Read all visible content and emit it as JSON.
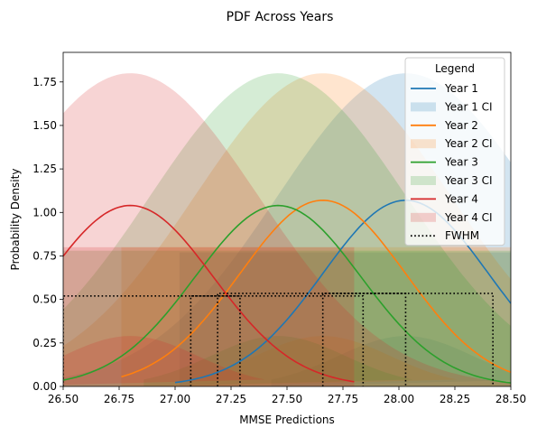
{
  "chart_data": {
    "type": "line",
    "title": "PDF Across Years",
    "xlabel": "MMSE Predictions",
    "ylabel": "Probability Density",
    "xlim": [
      26.5,
      28.5
    ],
    "ylim": [
      0,
      1.92
    ],
    "x_ticks": [
      "26.50",
      "26.75",
      "27.00",
      "27.25",
      "27.50",
      "27.75",
      "28.00",
      "28.25",
      "28.50"
    ],
    "y_ticks": [
      "0.00",
      "0.25",
      "0.50",
      "0.75",
      "1.00",
      "1.25",
      "1.50",
      "1.75"
    ],
    "grid": false,
    "legend_position": "top-right",
    "legend_title": "Legend",
    "series": [
      {
        "name": "Year 1",
        "color": "#1f77b4",
        "mean": 28.03,
        "sd": 0.37,
        "peak": 1.07,
        "x_range": [
          27.0,
          28.5
        ],
        "ci": {
          "name": "Year 1 CI",
          "peak": 1.8,
          "x_range": [
            27.02,
            28.5
          ],
          "rect_top": 0.77,
          "lower_peak": 0.29
        },
        "fwhm": {
          "left": 27.66,
          "right": 28.42,
          "height": 0.535
        }
      },
      {
        "name": "Year 2",
        "color": "#ff7f0e",
        "mean": 27.66,
        "sd": 0.37,
        "peak": 1.07,
        "x_range": [
          26.76,
          28.5
        ],
        "ci": {
          "name": "Year 2 CI",
          "peak": 1.8,
          "x_range": [
            26.76,
            28.5
          ],
          "rect_top": 0.8,
          "lower_peak": 0.29
        },
        "fwhm": {
          "left": 27.19,
          "right": 28.03,
          "height": 0.535
        }
      },
      {
        "name": "Year 3",
        "color": "#2ca02c",
        "mean": 27.46,
        "sd": 0.37,
        "peak": 1.04,
        "x_range": [
          26.5,
          28.5
        ],
        "ci": {
          "name": "Year 3 CI",
          "peak": 1.8,
          "x_range": [
            26.5,
            28.5
          ],
          "rect_top": 0.78,
          "lower_peak": 0.29
        },
        "fwhm": {
          "left": 27.07,
          "right": 27.84,
          "height": 0.52
        }
      },
      {
        "name": "Year 4",
        "color": "#d62728",
        "mean": 26.8,
        "sd": 0.37,
        "peak": 1.04,
        "x_range": [
          26.5,
          27.8
        ],
        "ci": {
          "name": "Year 4 CI",
          "peak": 1.8,
          "x_range": [
            26.5,
            27.8
          ],
          "rect_top": 0.8,
          "lower_peak": 0.29
        },
        "fwhm": {
          "left": 26.5,
          "right": 27.29,
          "height": 0.52
        }
      }
    ],
    "fwhm_label": "FWHM"
  }
}
